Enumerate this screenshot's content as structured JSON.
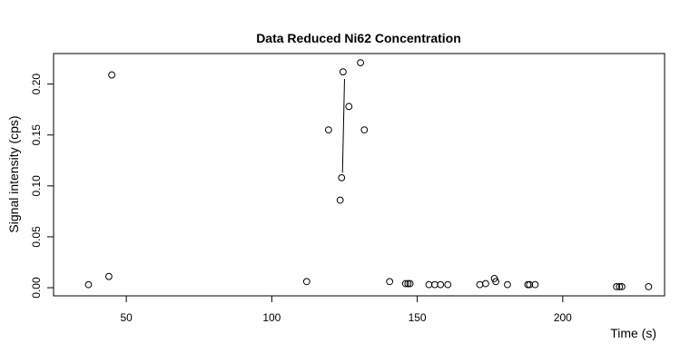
{
  "chart_data": {
    "type": "scatter",
    "title": "Data Reduced Ni62 Concentration",
    "xlabel": "Time (s)",
    "ylabel": "Signal intensity (cps)",
    "xlim": [
      25,
      235
    ],
    "ylim": [
      -0.008,
      0.23
    ],
    "x_ticks": [
      50,
      100,
      150,
      200
    ],
    "y_ticks": [
      0.0,
      0.05,
      0.1,
      0.15,
      0.2
    ],
    "x_tick_labels": [
      "50",
      "100",
      "150",
      "200"
    ],
    "y_tick_labels": [
      "0.00",
      "0.05",
      "0.10",
      "0.15",
      "0.20"
    ],
    "grid": false,
    "points": [
      {
        "x": 37,
        "y": 0.003
      },
      {
        "x": 44,
        "y": 0.011
      },
      {
        "x": 45,
        "y": 0.209
      },
      {
        "x": 112,
        "y": 0.006
      },
      {
        "x": 119.5,
        "y": 0.155
      },
      {
        "x": 123.5,
        "y": 0.086
      },
      {
        "x": 124,
        "y": 0.108
      },
      {
        "x": 124.5,
        "y": 0.212
      },
      {
        "x": 126.5,
        "y": 0.178
      },
      {
        "x": 130.5,
        "y": 0.221
      },
      {
        "x": 131.8,
        "y": 0.155
      },
      {
        "x": 140.5,
        "y": 0.006
      },
      {
        "x": 146,
        "y": 0.004
      },
      {
        "x": 146.8,
        "y": 0.004
      },
      {
        "x": 147.5,
        "y": 0.004
      },
      {
        "x": 154,
        "y": 0.003
      },
      {
        "x": 156,
        "y": 0.003
      },
      {
        "x": 158,
        "y": 0.003
      },
      {
        "x": 160.5,
        "y": 0.003
      },
      {
        "x": 171.5,
        "y": 0.003
      },
      {
        "x": 173.5,
        "y": 0.004
      },
      {
        "x": 176.5,
        "y": 0.009
      },
      {
        "x": 177,
        "y": 0.006
      },
      {
        "x": 181,
        "y": 0.003
      },
      {
        "x": 188,
        "y": 0.003
      },
      {
        "x": 188.6,
        "y": 0.003
      },
      {
        "x": 190.5,
        "y": 0.003
      },
      {
        "x": 218.5,
        "y": 0.001
      },
      {
        "x": 219.5,
        "y": 0.001
      },
      {
        "x": 220.3,
        "y": 0.001
      },
      {
        "x": 229.5,
        "y": 0.001
      }
    ],
    "segments": [
      {
        "x1": 125,
        "y1": 0.205,
        "x2": 124.3,
        "y2": 0.113
      }
    ]
  }
}
